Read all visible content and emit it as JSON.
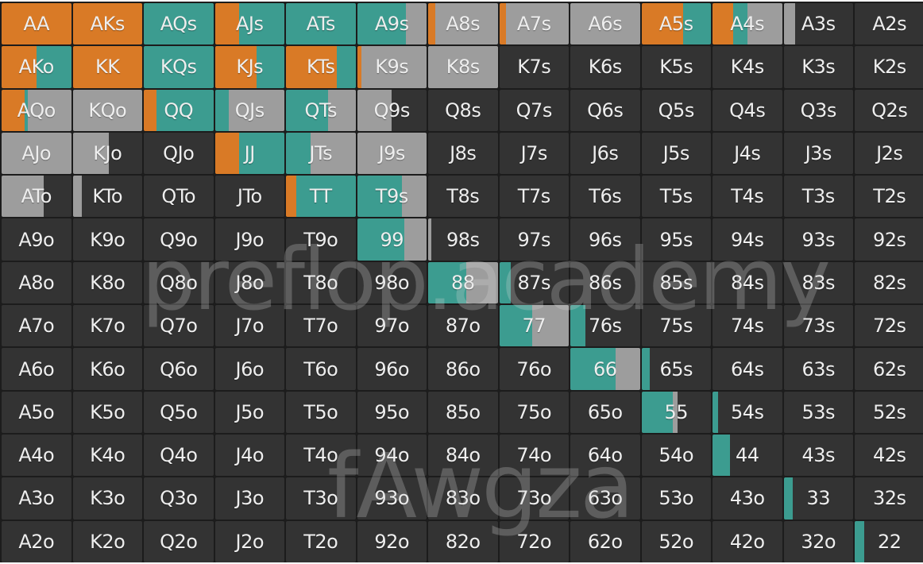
{
  "colors": {
    "raise": "#d97a26",
    "call": "#3c9c90",
    "fold": "#9d9d9d",
    "empty": "#333333"
  },
  "watermark": {
    "line1": "preflop.academy",
    "line2": "fAwgza"
  },
  "grid": [
    [
      {
        "hand": "AA",
        "raise": 1.0,
        "call": 0,
        "fold": 0
      },
      {
        "hand": "AKs",
        "raise": 1.0,
        "call": 0,
        "fold": 0
      },
      {
        "hand": "AQs",
        "raise": 0,
        "call": 1.0,
        "fold": 0
      },
      {
        "hand": "AJs",
        "raise": 0.35,
        "call": 0.65,
        "fold": 0
      },
      {
        "hand": "ATs",
        "raise": 0,
        "call": 1.0,
        "fold": 0
      },
      {
        "hand": "A9s",
        "raise": 0,
        "call": 0.7,
        "fold": 0.3
      },
      {
        "hand": "A8s",
        "raise": 0.1,
        "call": 0,
        "fold": 0.9
      },
      {
        "hand": "A7s",
        "raise": 0.1,
        "call": 0,
        "fold": 0.9
      },
      {
        "hand": "A6s",
        "raise": 0,
        "call": 0,
        "fold": 1.0
      },
      {
        "hand": "A5s",
        "raise": 0.6,
        "call": 0.4,
        "fold": 0
      },
      {
        "hand": "A4s",
        "raise": 0.3,
        "call": 0.2,
        "fold": 0.5
      },
      {
        "hand": "A3s",
        "raise": 0,
        "call": 0,
        "fold": 0.17
      },
      {
        "hand": "A2s",
        "raise": 0,
        "call": 0,
        "fold": 0
      }
    ],
    [
      {
        "hand": "AKo",
        "raise": 0.5,
        "call": 0.5,
        "fold": 0
      },
      {
        "hand": "KK",
        "raise": 1.0,
        "call": 0,
        "fold": 0
      },
      {
        "hand": "KQs",
        "raise": 0,
        "call": 1.0,
        "fold": 0
      },
      {
        "hand": "KJs",
        "raise": 0.6,
        "call": 0.4,
        "fold": 0
      },
      {
        "hand": "KTs",
        "raise": 0.73,
        "call": 0.27,
        "fold": 0
      },
      {
        "hand": "K9s",
        "raise": 0.06,
        "call": 0,
        "fold": 0.94
      },
      {
        "hand": "K8s",
        "raise": 0,
        "call": 0,
        "fold": 1.0
      },
      {
        "hand": "K7s",
        "raise": 0,
        "call": 0,
        "fold": 0
      },
      {
        "hand": "K6s",
        "raise": 0,
        "call": 0,
        "fold": 0
      },
      {
        "hand": "K5s",
        "raise": 0,
        "call": 0,
        "fold": 0
      },
      {
        "hand": "K4s",
        "raise": 0,
        "call": 0,
        "fold": 0
      },
      {
        "hand": "K3s",
        "raise": 0,
        "call": 0,
        "fold": 0
      },
      {
        "hand": "K2s",
        "raise": 0,
        "call": 0,
        "fold": 0
      }
    ],
    [
      {
        "hand": "AQo",
        "raise": 0.33,
        "call": 0.05,
        "fold": 0.62
      },
      {
        "hand": "KQo",
        "raise": 0,
        "call": 0,
        "fold": 1.0
      },
      {
        "hand": "QQ",
        "raise": 0.18,
        "call": 0.82,
        "fold": 0
      },
      {
        "hand": "QJs",
        "raise": 0,
        "call": 0.2,
        "fold": 0.8
      },
      {
        "hand": "QTs",
        "raise": 0,
        "call": 0.6,
        "fold": 0.4
      },
      {
        "hand": "Q9s",
        "raise": 0,
        "call": 0,
        "fold": 0.5
      },
      {
        "hand": "Q8s",
        "raise": 0,
        "call": 0,
        "fold": 0
      },
      {
        "hand": "Q7s",
        "raise": 0,
        "call": 0,
        "fold": 0
      },
      {
        "hand": "Q6s",
        "raise": 0,
        "call": 0,
        "fold": 0
      },
      {
        "hand": "Q5s",
        "raise": 0,
        "call": 0,
        "fold": 0
      },
      {
        "hand": "Q4s",
        "raise": 0,
        "call": 0,
        "fold": 0
      },
      {
        "hand": "Q3s",
        "raise": 0,
        "call": 0,
        "fold": 0
      },
      {
        "hand": "Q2s",
        "raise": 0,
        "call": 0,
        "fold": 0
      }
    ],
    [
      {
        "hand": "AJo",
        "raise": 0,
        "call": 0,
        "fold": 1.0
      },
      {
        "hand": "KJo",
        "raise": 0,
        "call": 0,
        "fold": 0.52
      },
      {
        "hand": "QJo",
        "raise": 0,
        "call": 0,
        "fold": 0
      },
      {
        "hand": "JJ",
        "raise": 0.35,
        "call": 0.65,
        "fold": 0
      },
      {
        "hand": "JTs",
        "raise": 0,
        "call": 0.35,
        "fold": 0.65
      },
      {
        "hand": "J9s",
        "raise": 0,
        "call": 0,
        "fold": 1.0
      },
      {
        "hand": "J8s",
        "raise": 0,
        "call": 0,
        "fold": 0
      },
      {
        "hand": "J7s",
        "raise": 0,
        "call": 0,
        "fold": 0
      },
      {
        "hand": "J6s",
        "raise": 0,
        "call": 0,
        "fold": 0
      },
      {
        "hand": "J5s",
        "raise": 0,
        "call": 0,
        "fold": 0
      },
      {
        "hand": "J4s",
        "raise": 0,
        "call": 0,
        "fold": 0
      },
      {
        "hand": "J3s",
        "raise": 0,
        "call": 0,
        "fold": 0
      },
      {
        "hand": "J2s",
        "raise": 0,
        "call": 0,
        "fold": 0
      }
    ],
    [
      {
        "hand": "ATo",
        "raise": 0,
        "call": 0,
        "fold": 0.6
      },
      {
        "hand": "KTo",
        "raise": 0,
        "call": 0,
        "fold": 0.13
      },
      {
        "hand": "QTo",
        "raise": 0,
        "call": 0,
        "fold": 0
      },
      {
        "hand": "JTo",
        "raise": 0,
        "call": 0,
        "fold": 0
      },
      {
        "hand": "TT",
        "raise": 0.15,
        "call": 0.85,
        "fold": 0
      },
      {
        "hand": "T9s",
        "raise": 0,
        "call": 0.65,
        "fold": 0.35
      },
      {
        "hand": "T8s",
        "raise": 0,
        "call": 0,
        "fold": 0
      },
      {
        "hand": "T7s",
        "raise": 0,
        "call": 0,
        "fold": 0
      },
      {
        "hand": "T6s",
        "raise": 0,
        "call": 0,
        "fold": 0
      },
      {
        "hand": "T5s",
        "raise": 0,
        "call": 0,
        "fold": 0
      },
      {
        "hand": "T4s",
        "raise": 0,
        "call": 0,
        "fold": 0
      },
      {
        "hand": "T3s",
        "raise": 0,
        "call": 0,
        "fold": 0
      },
      {
        "hand": "T2s",
        "raise": 0,
        "call": 0,
        "fold": 0
      }
    ],
    [
      {
        "hand": "A9o",
        "raise": 0,
        "call": 0,
        "fold": 0
      },
      {
        "hand": "K9o",
        "raise": 0,
        "call": 0,
        "fold": 0
      },
      {
        "hand": "Q9o",
        "raise": 0,
        "call": 0,
        "fold": 0
      },
      {
        "hand": "J9o",
        "raise": 0,
        "call": 0,
        "fold": 0
      },
      {
        "hand": "T9o",
        "raise": 0,
        "call": 0,
        "fold": 0
      },
      {
        "hand": "99",
        "raise": 0,
        "call": 0.68,
        "fold": 0.32
      },
      {
        "hand": "98s",
        "raise": 0,
        "call": 0,
        "fold": 0.04
      },
      {
        "hand": "97s",
        "raise": 0,
        "call": 0,
        "fold": 0
      },
      {
        "hand": "96s",
        "raise": 0,
        "call": 0,
        "fold": 0
      },
      {
        "hand": "95s",
        "raise": 0,
        "call": 0,
        "fold": 0
      },
      {
        "hand": "94s",
        "raise": 0,
        "call": 0,
        "fold": 0
      },
      {
        "hand": "93s",
        "raise": 0,
        "call": 0,
        "fold": 0
      },
      {
        "hand": "92s",
        "raise": 0,
        "call": 0,
        "fold": 0
      }
    ],
    [
      {
        "hand": "A8o",
        "raise": 0,
        "call": 0,
        "fold": 0
      },
      {
        "hand": "K8o",
        "raise": 0,
        "call": 0,
        "fold": 0
      },
      {
        "hand": "Q8o",
        "raise": 0,
        "call": 0,
        "fold": 0
      },
      {
        "hand": "J8o",
        "raise": 0,
        "call": 0,
        "fold": 0
      },
      {
        "hand": "T8o",
        "raise": 0,
        "call": 0,
        "fold": 0
      },
      {
        "hand": "98o",
        "raise": 0,
        "call": 0,
        "fold": 0
      },
      {
        "hand": "88",
        "raise": 0,
        "call": 0.55,
        "fold": 0.45
      },
      {
        "hand": "87s",
        "raise": 0,
        "call": 0.17,
        "fold": 0
      },
      {
        "hand": "86s",
        "raise": 0,
        "call": 0,
        "fold": 0
      },
      {
        "hand": "85s",
        "raise": 0,
        "call": 0,
        "fold": 0
      },
      {
        "hand": "84s",
        "raise": 0,
        "call": 0,
        "fold": 0
      },
      {
        "hand": "83s",
        "raise": 0,
        "call": 0,
        "fold": 0
      },
      {
        "hand": "82s",
        "raise": 0,
        "call": 0,
        "fold": 0
      }
    ],
    [
      {
        "hand": "A7o",
        "raise": 0,
        "call": 0,
        "fold": 0
      },
      {
        "hand": "K7o",
        "raise": 0,
        "call": 0,
        "fold": 0
      },
      {
        "hand": "Q7o",
        "raise": 0,
        "call": 0,
        "fold": 0
      },
      {
        "hand": "J7o",
        "raise": 0,
        "call": 0,
        "fold": 0
      },
      {
        "hand": "T7o",
        "raise": 0,
        "call": 0,
        "fold": 0
      },
      {
        "hand": "97o",
        "raise": 0,
        "call": 0,
        "fold": 0
      },
      {
        "hand": "87o",
        "raise": 0,
        "call": 0,
        "fold": 0
      },
      {
        "hand": "77",
        "raise": 0,
        "call": 0.47,
        "fold": 0.53
      },
      {
        "hand": "76s",
        "raise": 0,
        "call": 0.22,
        "fold": 0
      },
      {
        "hand": "75s",
        "raise": 0,
        "call": 0,
        "fold": 0
      },
      {
        "hand": "74s",
        "raise": 0,
        "call": 0,
        "fold": 0
      },
      {
        "hand": "73s",
        "raise": 0,
        "call": 0,
        "fold": 0
      },
      {
        "hand": "72s",
        "raise": 0,
        "call": 0,
        "fold": 0
      }
    ],
    [
      {
        "hand": "A6o",
        "raise": 0,
        "call": 0,
        "fold": 0
      },
      {
        "hand": "K6o",
        "raise": 0,
        "call": 0,
        "fold": 0
      },
      {
        "hand": "Q6o",
        "raise": 0,
        "call": 0,
        "fold": 0
      },
      {
        "hand": "J6o",
        "raise": 0,
        "call": 0,
        "fold": 0
      },
      {
        "hand": "T6o",
        "raise": 0,
        "call": 0,
        "fold": 0
      },
      {
        "hand": "96o",
        "raise": 0,
        "call": 0,
        "fold": 0
      },
      {
        "hand": "86o",
        "raise": 0,
        "call": 0,
        "fold": 0
      },
      {
        "hand": "76o",
        "raise": 0,
        "call": 0,
        "fold": 0
      },
      {
        "hand": "66",
        "raise": 0,
        "call": 0.65,
        "fold": 0.35
      },
      {
        "hand": "65s",
        "raise": 0,
        "call": 0.12,
        "fold": 0
      },
      {
        "hand": "64s",
        "raise": 0,
        "call": 0,
        "fold": 0
      },
      {
        "hand": "63s",
        "raise": 0,
        "call": 0,
        "fold": 0
      },
      {
        "hand": "62s",
        "raise": 0,
        "call": 0,
        "fold": 0
      }
    ],
    [
      {
        "hand": "A5o",
        "raise": 0,
        "call": 0,
        "fold": 0
      },
      {
        "hand": "K5o",
        "raise": 0,
        "call": 0,
        "fold": 0
      },
      {
        "hand": "Q5o",
        "raise": 0,
        "call": 0,
        "fold": 0
      },
      {
        "hand": "J5o",
        "raise": 0,
        "call": 0,
        "fold": 0
      },
      {
        "hand": "T5o",
        "raise": 0,
        "call": 0,
        "fold": 0
      },
      {
        "hand": "95o",
        "raise": 0,
        "call": 0,
        "fold": 0
      },
      {
        "hand": "85o",
        "raise": 0,
        "call": 0,
        "fold": 0
      },
      {
        "hand": "75o",
        "raise": 0,
        "call": 0,
        "fold": 0
      },
      {
        "hand": "65o",
        "raise": 0,
        "call": 0,
        "fold": 0
      },
      {
        "hand": "55",
        "raise": 0,
        "call": 0.45,
        "fold": 0.07
      },
      {
        "hand": "54s",
        "raise": 0,
        "call": 0.08,
        "fold": 0
      },
      {
        "hand": "53s",
        "raise": 0,
        "call": 0,
        "fold": 0
      },
      {
        "hand": "52s",
        "raise": 0,
        "call": 0,
        "fold": 0
      }
    ],
    [
      {
        "hand": "A4o",
        "raise": 0,
        "call": 0,
        "fold": 0
      },
      {
        "hand": "K4o",
        "raise": 0,
        "call": 0,
        "fold": 0
      },
      {
        "hand": "Q4o",
        "raise": 0,
        "call": 0,
        "fold": 0
      },
      {
        "hand": "J4o",
        "raise": 0,
        "call": 0,
        "fold": 0
      },
      {
        "hand": "T4o",
        "raise": 0,
        "call": 0,
        "fold": 0
      },
      {
        "hand": "94o",
        "raise": 0,
        "call": 0,
        "fold": 0
      },
      {
        "hand": "84o",
        "raise": 0,
        "call": 0,
        "fold": 0
      },
      {
        "hand": "74o",
        "raise": 0,
        "call": 0,
        "fold": 0
      },
      {
        "hand": "64o",
        "raise": 0,
        "call": 0,
        "fold": 0
      },
      {
        "hand": "54o",
        "raise": 0,
        "call": 0,
        "fold": 0
      },
      {
        "hand": "44",
        "raise": 0,
        "call": 0.25,
        "fold": 0
      },
      {
        "hand": "43s",
        "raise": 0,
        "call": 0,
        "fold": 0
      },
      {
        "hand": "42s",
        "raise": 0,
        "call": 0,
        "fold": 0
      }
    ],
    [
      {
        "hand": "A3o",
        "raise": 0,
        "call": 0,
        "fold": 0
      },
      {
        "hand": "K3o",
        "raise": 0,
        "call": 0,
        "fold": 0
      },
      {
        "hand": "Q3o",
        "raise": 0,
        "call": 0,
        "fold": 0
      },
      {
        "hand": "J3o",
        "raise": 0,
        "call": 0,
        "fold": 0
      },
      {
        "hand": "T3o",
        "raise": 0,
        "call": 0,
        "fold": 0
      },
      {
        "hand": "93o",
        "raise": 0,
        "call": 0,
        "fold": 0
      },
      {
        "hand": "83o",
        "raise": 0,
        "call": 0,
        "fold": 0
      },
      {
        "hand": "73o",
        "raise": 0,
        "call": 0,
        "fold": 0
      },
      {
        "hand": "63o",
        "raise": 0,
        "call": 0,
        "fold": 0
      },
      {
        "hand": "53o",
        "raise": 0,
        "call": 0,
        "fold": 0
      },
      {
        "hand": "43o",
        "raise": 0,
        "call": 0,
        "fold": 0
      },
      {
        "hand": "33",
        "raise": 0,
        "call": 0.13,
        "fold": 0
      },
      {
        "hand": "32s",
        "raise": 0,
        "call": 0,
        "fold": 0
      }
    ],
    [
      {
        "hand": "A2o",
        "raise": 0,
        "call": 0,
        "fold": 0
      },
      {
        "hand": "K2o",
        "raise": 0,
        "call": 0,
        "fold": 0
      },
      {
        "hand": "Q2o",
        "raise": 0,
        "call": 0,
        "fold": 0
      },
      {
        "hand": "J2o",
        "raise": 0,
        "call": 0,
        "fold": 0
      },
      {
        "hand": "T2o",
        "raise": 0,
        "call": 0,
        "fold": 0
      },
      {
        "hand": "92o",
        "raise": 0,
        "call": 0,
        "fold": 0
      },
      {
        "hand": "82o",
        "raise": 0,
        "call": 0,
        "fold": 0
      },
      {
        "hand": "72o",
        "raise": 0,
        "call": 0,
        "fold": 0
      },
      {
        "hand": "62o",
        "raise": 0,
        "call": 0,
        "fold": 0
      },
      {
        "hand": "52o",
        "raise": 0,
        "call": 0,
        "fold": 0
      },
      {
        "hand": "42o",
        "raise": 0,
        "call": 0,
        "fold": 0
      },
      {
        "hand": "32o",
        "raise": 0,
        "call": 0,
        "fold": 0
      },
      {
        "hand": "22",
        "raise": 0,
        "call": 0.14,
        "fold": 0
      }
    ]
  ]
}
